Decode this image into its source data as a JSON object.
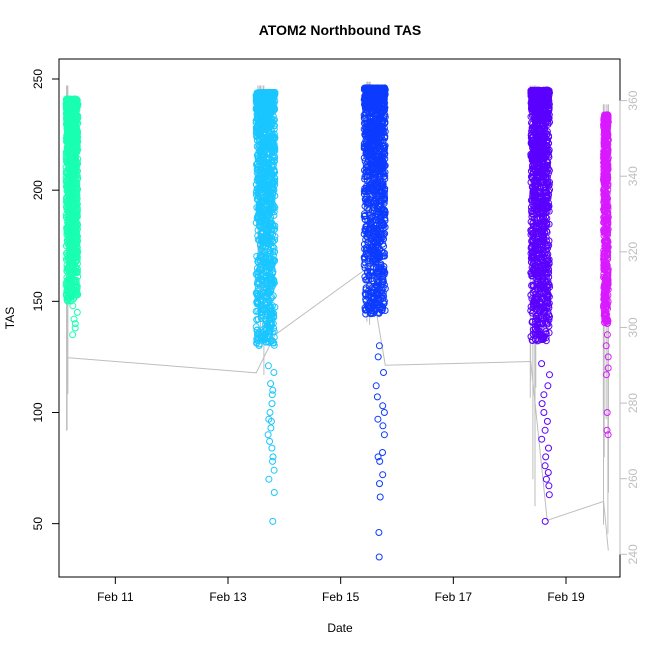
{
  "chart_data": {
    "type": "scatter",
    "title": "ATOM2 Northbound TAS",
    "xlabel": "Date",
    "ylabel": "TAS",
    "x_ticks": [
      "Feb 11",
      "Feb 13",
      "Feb 15",
      "Feb 17",
      "Feb 19"
    ],
    "y_ticks": [
      "50",
      "100",
      "150",
      "200",
      "250"
    ],
    "y_ticks_right": [
      "240",
      "260",
      "280",
      "300",
      "320",
      "340",
      "360"
    ],
    "xlim": [
      "Feb 10 00:00",
      "Feb 19 23:00"
    ],
    "ylim": [
      26,
      259
    ],
    "ylim_right": [
      234,
      371
    ],
    "grid": false,
    "legend": "none",
    "series": [
      {
        "color": "#1AFFB2",
        "x_range": [
          "Feb 10 03:00",
          "Feb 10 08:00"
        ],
        "dense_range": [
          150,
          241
        ],
        "outliers": [
          135,
          140,
          145,
          148,
          138,
          142
        ],
        "values_reading": "dense band 150-241 TAS, scattered points down to ~133"
      },
      {
        "color": "#1AC6FF",
        "x_range": [
          "Feb 13 12:00",
          "Feb 13 20:00"
        ],
        "dense_range": [
          130,
          244
        ],
        "outliers": [
          121,
          118,
          113,
          110,
          108,
          104,
          97,
          93,
          90,
          100,
          96,
          87,
          84,
          80,
          78,
          74,
          70,
          64,
          51
        ],
        "values_reading": "dense band 130-244 TAS, tail down to ~51"
      },
      {
        "color": "#0D3BFF",
        "x_range": [
          "Feb 15 10:00",
          "Feb 15 19:00"
        ],
        "dense_range": [
          144,
          246
        ],
        "outliers": [
          130,
          125,
          118,
          112,
          107,
          103,
          100,
          97,
          94,
          90,
          82,
          80,
          78,
          72,
          68,
          62,
          46,
          35
        ],
        "values_reading": "dense band 144-246 TAS, tail down to ~35"
      },
      {
        "color": "#5A00FF",
        "x_range": [
          "Feb 18 09:00",
          "Feb 18 17:00"
        ],
        "dense_range": [
          132,
          245
        ],
        "outliers": [
          122,
          117,
          112,
          108,
          104,
          100,
          96,
          92,
          88,
          84,
          80,
          76,
          73,
          70,
          67,
          63,
          51
        ],
        "values_reading": "dense band 132-245 TAS, tail down to ~51"
      },
      {
        "color": "#D91AFF",
        "x_range": [
          "Feb 19 16:00",
          "Feb 19 18:00"
        ],
        "dense_range": [
          140,
          234
        ],
        "outliers": [
          135,
          130,
          125,
          120,
          117,
          100,
          92,
          90
        ],
        "values_reading": "sparser band 140-234 TAS, lowest ~90"
      }
    ],
    "secondary_line": {
      "color": "#bebebe",
      "axis": "right",
      "points": [
        {
          "x": "Feb 10 04:00",
          "y": 292
        },
        {
          "x": "Feb 13 12:00",
          "y": 288
        },
        {
          "x": "Feb 13 20:00",
          "y": 298
        },
        {
          "x": "Feb 15 12:00",
          "y": 316
        },
        {
          "x": "Feb 15 19:00",
          "y": 290
        },
        {
          "x": "Feb 18 09:00",
          "y": 291
        },
        {
          "x": "Feb 18 16:00",
          "y": 249
        },
        {
          "x": "Feb 19 16:00",
          "y": 254
        },
        {
          "x": "Feb 19 18:00",
          "y": 241
        }
      ],
      "spikes": [
        {
          "x": "Feb 10 04:00",
          "low": 272,
          "high": 364
        },
        {
          "x": "Feb 13 14:00",
          "low": 287,
          "high": 364
        },
        {
          "x": "Feb 15 12:00",
          "low": 296,
          "high": 365
        },
        {
          "x": "Feb 18 10:00",
          "low": 249,
          "high": 364
        },
        {
          "x": "Feb 19 17:00",
          "low": 241,
          "high": 359
        }
      ]
    }
  }
}
